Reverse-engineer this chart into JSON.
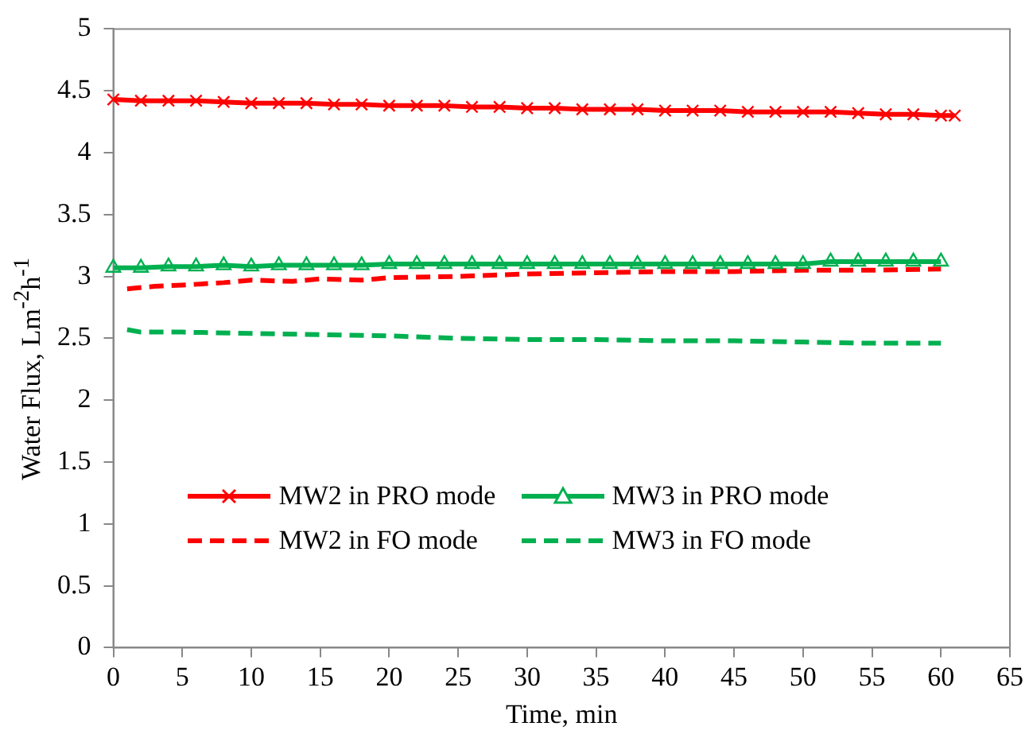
{
  "chart_data": {
    "type": "line",
    "xlabel": "Time, min",
    "ylabel": "Water Flux, Lm$^{-2}$h$^{-1}$",
    "xlim": [
      0,
      65
    ],
    "xticks": [
      0,
      5,
      10,
      15,
      20,
      25,
      30,
      35,
      40,
      45,
      50,
      55,
      60,
      65
    ],
    "ylim": [
      0,
      5
    ],
    "yticks": [
      0,
      0.5,
      1,
      1.5,
      2,
      2.5,
      3,
      3.5,
      4,
      4.5,
      5
    ],
    "legend": "bottom",
    "series": [
      {
        "name": "MW2 in PRO mode",
        "color": "#ff0000",
        "marker": "cross",
        "line_style": "solid",
        "x": [
          0,
          2,
          4,
          6,
          8,
          10,
          12,
          14,
          16,
          18,
          20,
          22,
          24,
          26,
          28,
          30,
          32,
          34,
          36,
          38,
          40,
          42,
          44,
          46,
          48,
          50,
          52,
          54,
          56,
          58,
          60,
          61
        ],
        "values": [
          4.43,
          4.42,
          4.42,
          4.42,
          4.41,
          4.4,
          4.4,
          4.4,
          4.39,
          4.39,
          4.38,
          4.38,
          4.38,
          4.37,
          4.37,
          4.36,
          4.36,
          4.35,
          4.35,
          4.35,
          4.34,
          4.34,
          4.34,
          4.33,
          4.33,
          4.33,
          4.33,
          4.32,
          4.31,
          4.31,
          4.3,
          4.3
        ]
      },
      {
        "name": "MW3 in PRO mode",
        "color": "#00b050",
        "marker": "triangle",
        "line_style": "solid",
        "x": [
          0,
          2,
          4,
          6,
          8,
          10,
          12,
          14,
          16,
          18,
          20,
          22,
          24,
          26,
          28,
          30,
          32,
          34,
          36,
          38,
          40,
          42,
          44,
          46,
          48,
          50,
          52,
          54,
          56,
          58,
          60
        ],
        "values": [
          3.07,
          3.07,
          3.08,
          3.08,
          3.09,
          3.08,
          3.09,
          3.09,
          3.09,
          3.09,
          3.1,
          3.1,
          3.1,
          3.1,
          3.1,
          3.1,
          3.1,
          3.1,
          3.1,
          3.1,
          3.1,
          3.1,
          3.1,
          3.1,
          3.1,
          3.1,
          3.12,
          3.12,
          3.12,
          3.12,
          3.12
        ]
      },
      {
        "name": "MW2 in FO mode",
        "color": "#ff0000",
        "marker": "none",
        "line_style": "dashed",
        "x": [
          1,
          3,
          5,
          8,
          10,
          13,
          15,
          18,
          20,
          25,
          30,
          35,
          40,
          45,
          50,
          55,
          60
        ],
        "values": [
          2.9,
          2.92,
          2.93,
          2.95,
          2.97,
          2.96,
          2.98,
          2.97,
          2.99,
          3.0,
          3.02,
          3.03,
          3.04,
          3.04,
          3.05,
          3.05,
          3.06
        ]
      },
      {
        "name": "MW3 in FO mode",
        "color": "#00b050",
        "marker": "none",
        "line_style": "dashed",
        "x": [
          1,
          2,
          5,
          10,
          15,
          20,
          25,
          30,
          35,
          40,
          45,
          50,
          55,
          60
        ],
        "values": [
          2.57,
          2.55,
          2.55,
          2.54,
          2.53,
          2.52,
          2.5,
          2.49,
          2.49,
          2.48,
          2.48,
          2.47,
          2.46,
          2.46
        ]
      }
    ]
  }
}
